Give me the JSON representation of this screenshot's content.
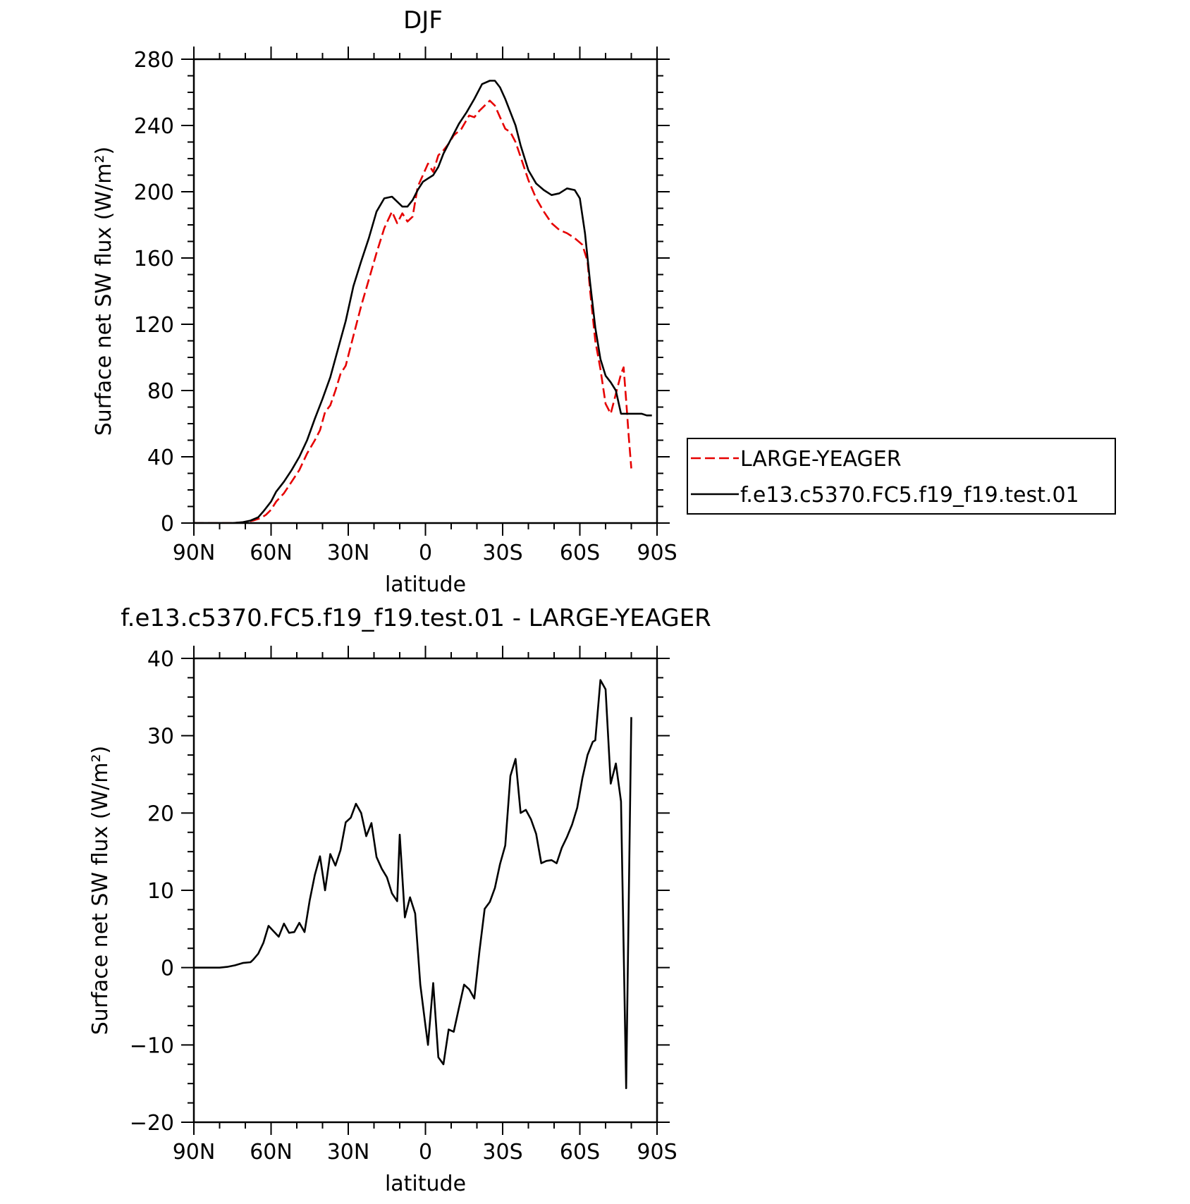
{
  "chart_data": [
    {
      "type": "line",
      "title": "DJF",
      "xlabel": "latitude",
      "ylabel": "Surface net SW flux (W/m²)",
      "xlim": [
        -90,
        90
      ],
      "ylim": [
        0,
        280
      ],
      "x_ticks": [
        -90,
        -60,
        -30,
        0,
        30,
        60,
        90
      ],
      "x_tick_labels": [
        "90N",
        "60N",
        "30N",
        "0",
        "30S",
        "60S",
        "90S"
      ],
      "y_ticks": [
        0,
        40,
        80,
        120,
        160,
        200,
        240,
        280
      ],
      "y_tick_labels": [
        "0",
        "40",
        "80",
        "120",
        "160",
        "200",
        "240",
        "280"
      ],
      "legend_position": "right",
      "series": [
        {
          "name": "LARGE-YEAGER",
          "color": "#e60000",
          "dash": "dashed",
          "x": [
            -90,
            -75,
            -70,
            -67,
            -64,
            -62,
            -60,
            -58,
            -55,
            -52,
            -49,
            -46,
            -43,
            -41,
            -39,
            -37,
            -35,
            -33,
            -31,
            -28,
            -25,
            -22,
            -19,
            -16,
            -13,
            -11,
            -9,
            -7,
            -5,
            -3,
            -1,
            1,
            3,
            5,
            7,
            9,
            11,
            14,
            17,
            19,
            21,
            23,
            25,
            27,
            29,
            31,
            33,
            35,
            37,
            40,
            43,
            46,
            49,
            52,
            55,
            58,
            61,
            63,
            64,
            66,
            68,
            70,
            72,
            74,
            76,
            77,
            78,
            79,
            80
          ],
          "y": [
            0,
            0,
            0.5,
            1.5,
            3,
            5,
            8,
            13,
            18,
            25,
            32,
            42,
            50,
            56,
            67,
            71,
            80,
            90,
            95,
            113,
            131,
            147,
            163,
            178,
            188,
            181,
            187,
            182,
            185,
            203,
            210,
            217,
            212,
            222,
            225,
            229,
            234,
            238,
            246,
            245,
            249,
            252,
            255,
            252,
            245,
            238,
            236,
            230,
            221,
            207,
            196,
            188,
            181,
            177,
            175,
            172,
            168,
            158,
            140,
            110,
            93,
            72,
            66,
            78,
            90,
            94,
            74,
            52,
            33
          ]
        },
        {
          "name": "f.e13.c5370.FC5.f19_f19.test.01",
          "color": "#000000",
          "dash": "solid",
          "x": [
            -90,
            -75,
            -71,
            -68,
            -65,
            -63,
            -60,
            -58,
            -55,
            -52,
            -49,
            -46,
            -43,
            -40,
            -37,
            -34,
            -31,
            -28,
            -25,
            -22,
            -19,
            -16,
            -13,
            -11,
            -9,
            -7,
            -5,
            -3,
            -1,
            1,
            3,
            5,
            7,
            10,
            13,
            16,
            19,
            22,
            25,
            27,
            29,
            31,
            33,
            35,
            37,
            40,
            43,
            46,
            49,
            52,
            55,
            58,
            60,
            62,
            64,
            66,
            68,
            70,
            72,
            74,
            76,
            78,
            80,
            82,
            84,
            86,
            88
          ],
          "y": [
            0,
            0,
            0.5,
            1.5,
            3.5,
            7,
            13,
            19,
            25,
            32,
            40,
            50,
            63,
            75,
            88,
            105,
            122,
            143,
            158,
            172,
            188,
            196,
            197,
            194,
            191,
            191,
            195,
            201,
            206,
            208,
            210,
            215,
            223,
            232,
            241,
            248,
            256,
            265,
            267,
            267,
            263,
            256,
            248,
            240,
            228,
            213,
            205,
            201,
            198,
            199,
            202,
            201,
            196,
            175,
            145,
            118,
            99,
            89,
            85,
            80,
            66,
            66,
            66,
            66,
            66,
            65,
            65
          ]
        }
      ]
    },
    {
      "type": "line",
      "title": "f.e13.c5370.FC5.f19_f19.test.01 - LARGE-YEAGER",
      "xlabel": "latitude",
      "ylabel": "Surface net SW flux (W/m²)",
      "xlim": [
        -90,
        90
      ],
      "ylim": [
        -20,
        40
      ],
      "x_ticks": [
        -90,
        -60,
        -30,
        0,
        30,
        60,
        90
      ],
      "x_tick_labels": [
        "90N",
        "60N",
        "30N",
        "0",
        "30S",
        "60S",
        "90S"
      ],
      "y_ticks": [
        -20,
        -10,
        0,
        10,
        20,
        30,
        40
      ],
      "y_tick_labels": [
        "−20",
        "−10",
        "0",
        "10",
        "20",
        "30",
        "40"
      ],
      "series": [
        {
          "color": "#000000",
          "dash": "solid",
          "x": [
            -90,
            -80,
            -77,
            -74,
            -71,
            -68,
            -67,
            -65,
            -63,
            -61,
            -59,
            -57,
            -55,
            -53,
            -51,
            -49,
            -47,
            -45,
            -43,
            -41,
            -39,
            -37,
            -35,
            -33,
            -31,
            -29,
            -27,
            -25,
            -23,
            -21,
            -19,
            -17,
            -15,
            -13,
            -11,
            -10,
            -8,
            -6,
            -4,
            -2,
            0,
            1,
            3,
            5,
            7,
            9,
            11,
            13,
            15,
            17,
            19,
            21,
            23,
            25,
            27,
            29,
            31,
            33,
            35,
            37,
            39,
            41,
            43,
            45,
            47,
            49,
            51,
            53,
            55,
            57,
            59,
            61,
            63,
            65,
            66,
            68,
            70,
            72,
            74,
            76,
            78,
            80
          ],
          "y": [
            0,
            0,
            0.1,
            0.3,
            0.6,
            0.7,
            1,
            1.8,
            3.2,
            5.4,
            4.7,
            4,
            5.7,
            4.5,
            4.6,
            5.8,
            4.6,
            8.7,
            12,
            14.4,
            10,
            14.7,
            13.2,
            15.2,
            18.8,
            19.4,
            21.2,
            20,
            17,
            18.7,
            14.3,
            12.8,
            11.7,
            9.6,
            8.6,
            17.2,
            6.5,
            9.1,
            7,
            -2.2,
            -7.5,
            -10,
            -2,
            -11.6,
            -12.5,
            -8,
            -8.3,
            -5.2,
            -2.2,
            -2.8,
            -4,
            2.2,
            7.6,
            8.5,
            10.3,
            13.4,
            15.8,
            24.8,
            27,
            20,
            20.4,
            19.2,
            17.3,
            13.5,
            13.8,
            13.9,
            13.5,
            15.5,
            16.9,
            18.5,
            20.7,
            24.5,
            27.5,
            29.2,
            29.4,
            37.2,
            36,
            23.8,
            26.4,
            21.5,
            -15.6,
            32.4
          ]
        }
      ]
    }
  ]
}
